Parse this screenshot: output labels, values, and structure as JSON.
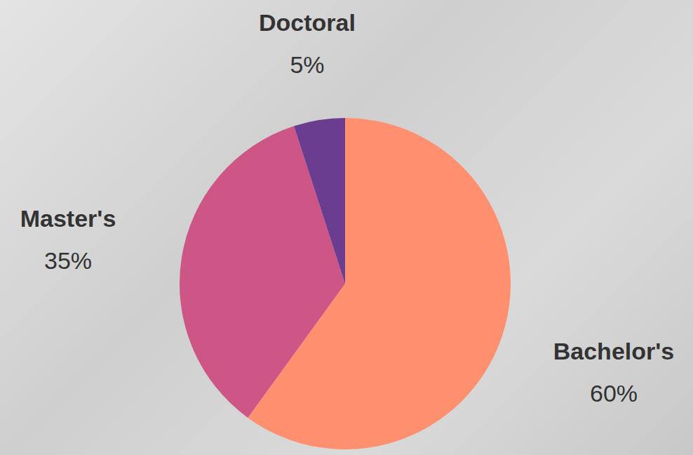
{
  "chart_data": {
    "type": "pie",
    "categories": [
      "Bachelor's",
      "Master's",
      "Doctoral"
    ],
    "values": [
      60,
      35,
      5
    ],
    "value_labels": [
      "60%",
      "35%",
      "5%"
    ],
    "colors": [
      "#fe8f6f",
      "#cd5687",
      "#6a3d91"
    ],
    "data_labels": true
  }
}
